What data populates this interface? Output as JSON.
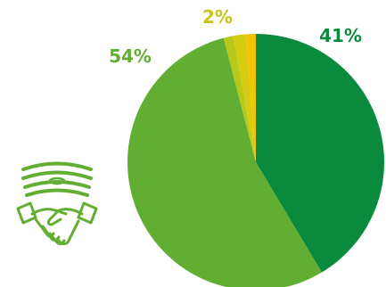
{
  "chart_data": {
    "type": "pie",
    "slices": [
      {
        "value": 41,
        "color": "#0a8a3c"
      },
      {
        "value": 54,
        "color": "#62ae33"
      },
      {
        "value": 1.2,
        "color": "#b7c81c"
      },
      {
        "value": 1.6,
        "color": "#d6cc10"
      },
      {
        "value": 1.2,
        "color": "#f2c500"
      }
    ],
    "data_labels": [
      {
        "text": "41%",
        "color": "#0a8a3c"
      },
      {
        "text": "54%",
        "color": "#62ae33"
      },
      {
        "text": "2%",
        "color": "#c8c41a"
      }
    ]
  },
  "icons": {
    "handshake": {
      "name": "handshake-money-icon",
      "color": "#62ae33"
    }
  }
}
